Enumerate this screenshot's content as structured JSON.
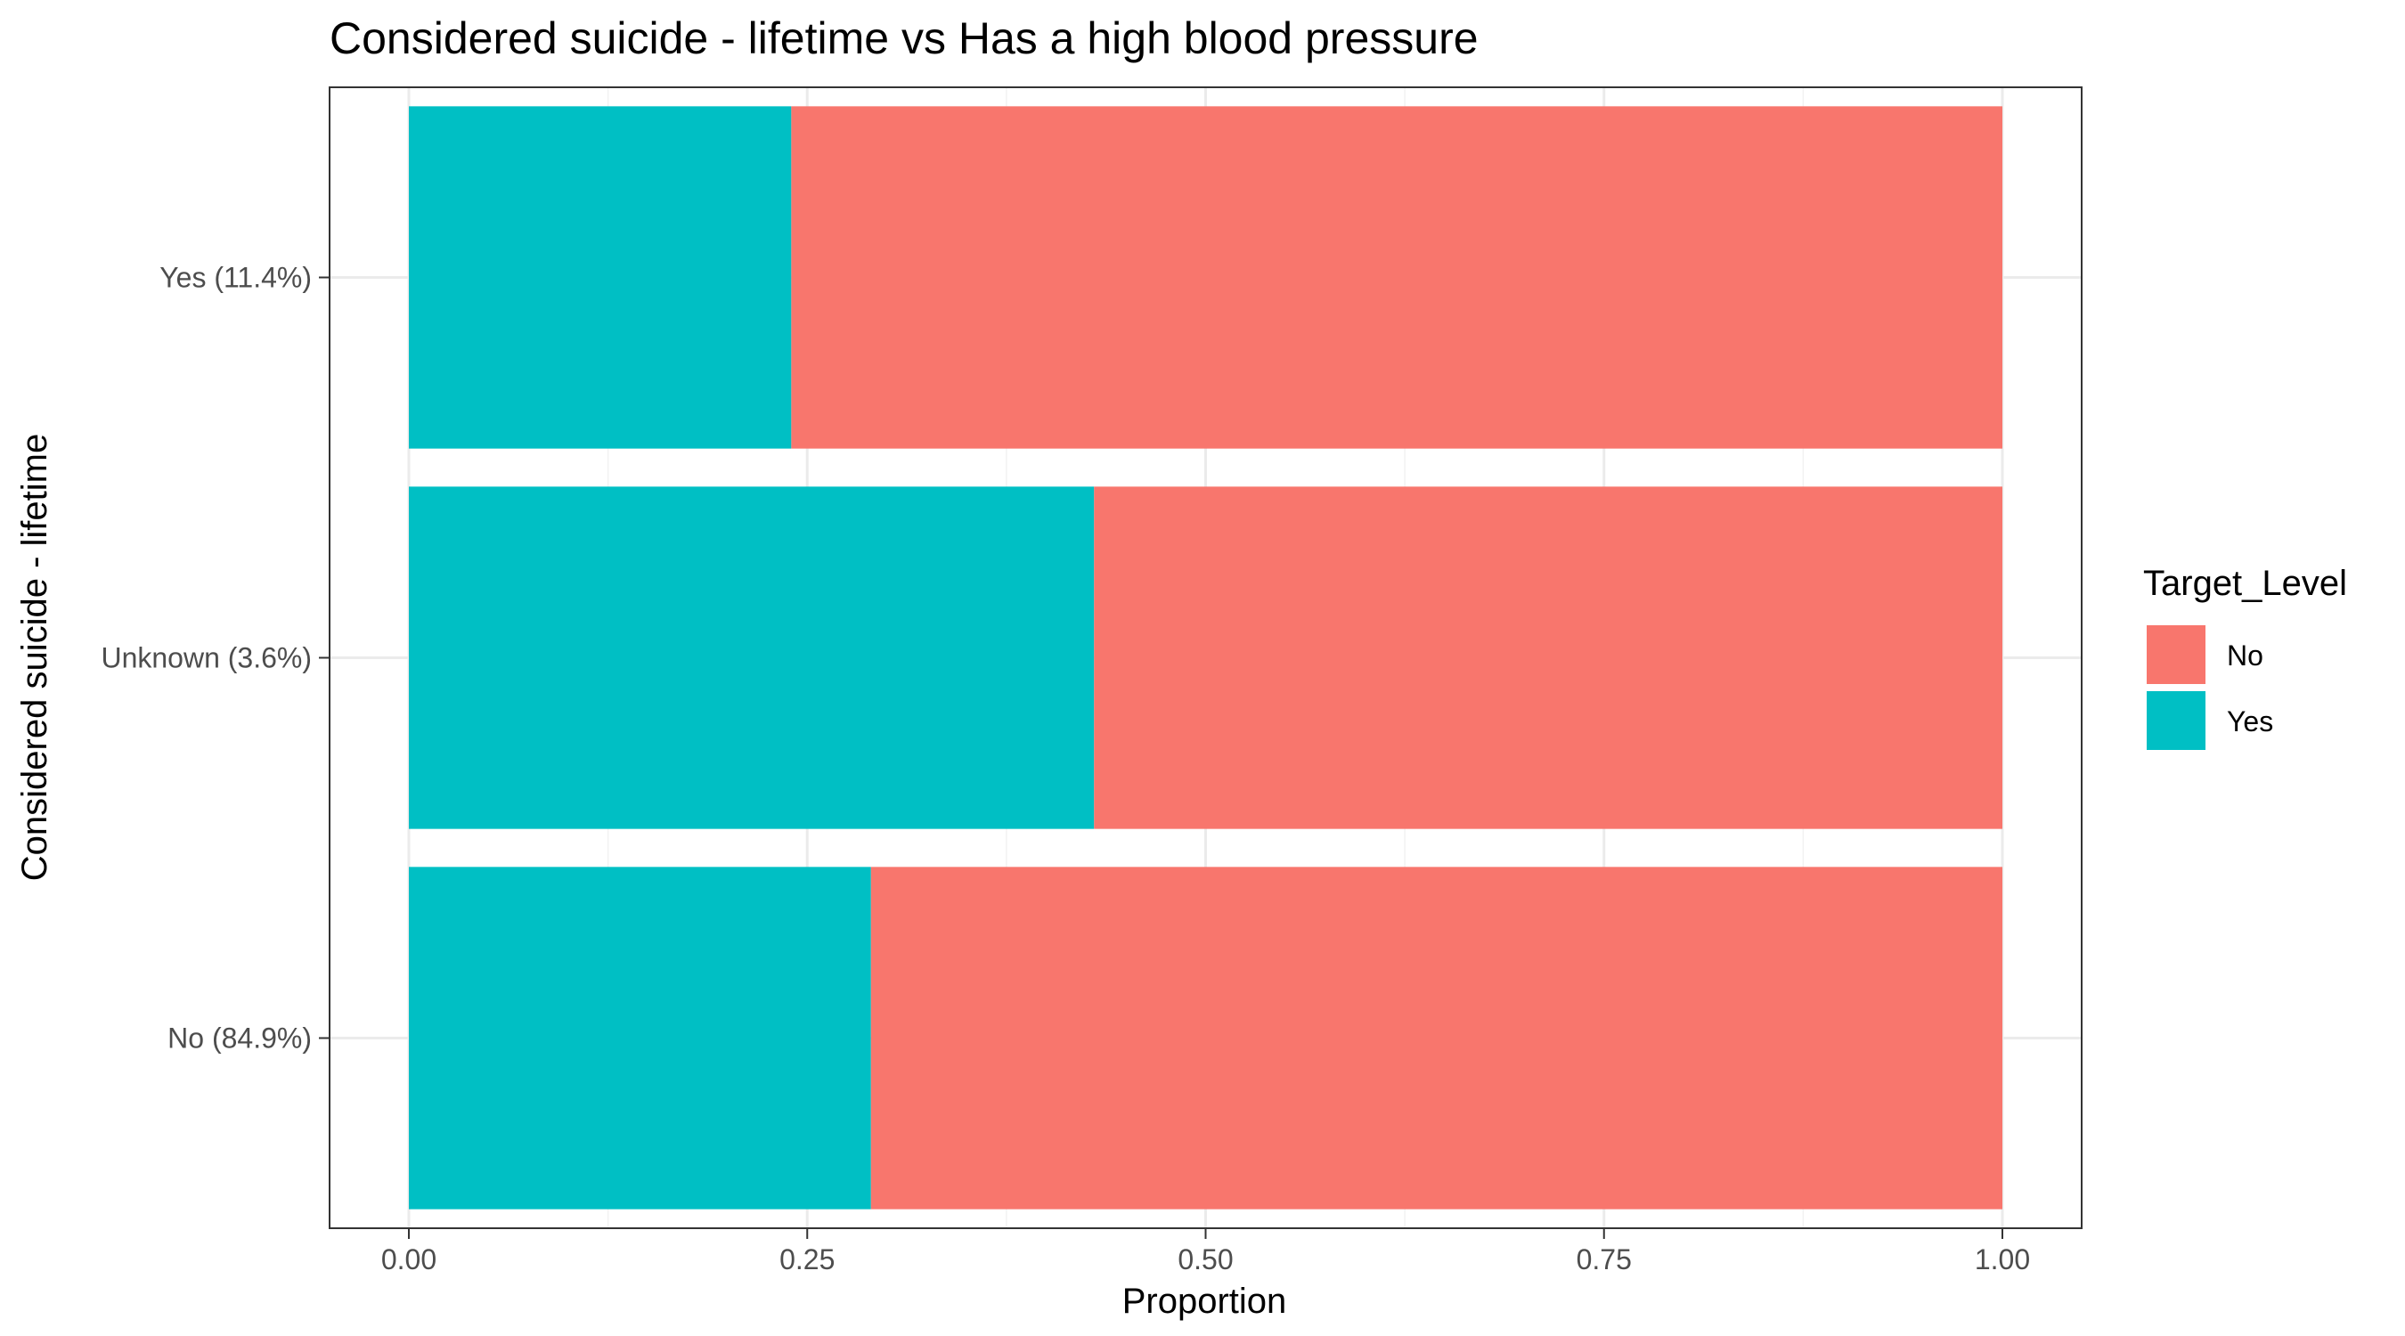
{
  "chart_data": {
    "type": "bar",
    "orientation": "horizontal",
    "stacked": true,
    "title": "Considered suicide - lifetime vs Has a high blood pressure",
    "xlabel": "Proportion",
    "ylabel": "Considered suicide - lifetime",
    "xlim": [
      0,
      1
    ],
    "x_ticks": [
      0,
      0.25,
      0.5,
      0.75,
      1
    ],
    "x_tick_labels": [
      "0.00",
      "0.25",
      "0.50",
      "0.75",
      "1.00"
    ],
    "categories": [
      "No (84.9%)",
      "Unknown (3.6%)",
      "Yes (11.4%)"
    ],
    "series": [
      {
        "name": "Yes",
        "color": "#00BFC4",
        "values": [
          0.29,
          0.43,
          0.24
        ]
      },
      {
        "name": "No",
        "color": "#F8766D",
        "values": [
          0.71,
          0.57,
          0.76
        ]
      }
    ],
    "stack_order": [
      "Yes",
      "No"
    ],
    "legend": {
      "title": "Target_Level",
      "position": "right",
      "entries": [
        {
          "label": "No",
          "color": "#F8766D"
        },
        {
          "label": "Yes",
          "color": "#00BFC4"
        }
      ]
    },
    "grid": true,
    "theme": "bw"
  }
}
